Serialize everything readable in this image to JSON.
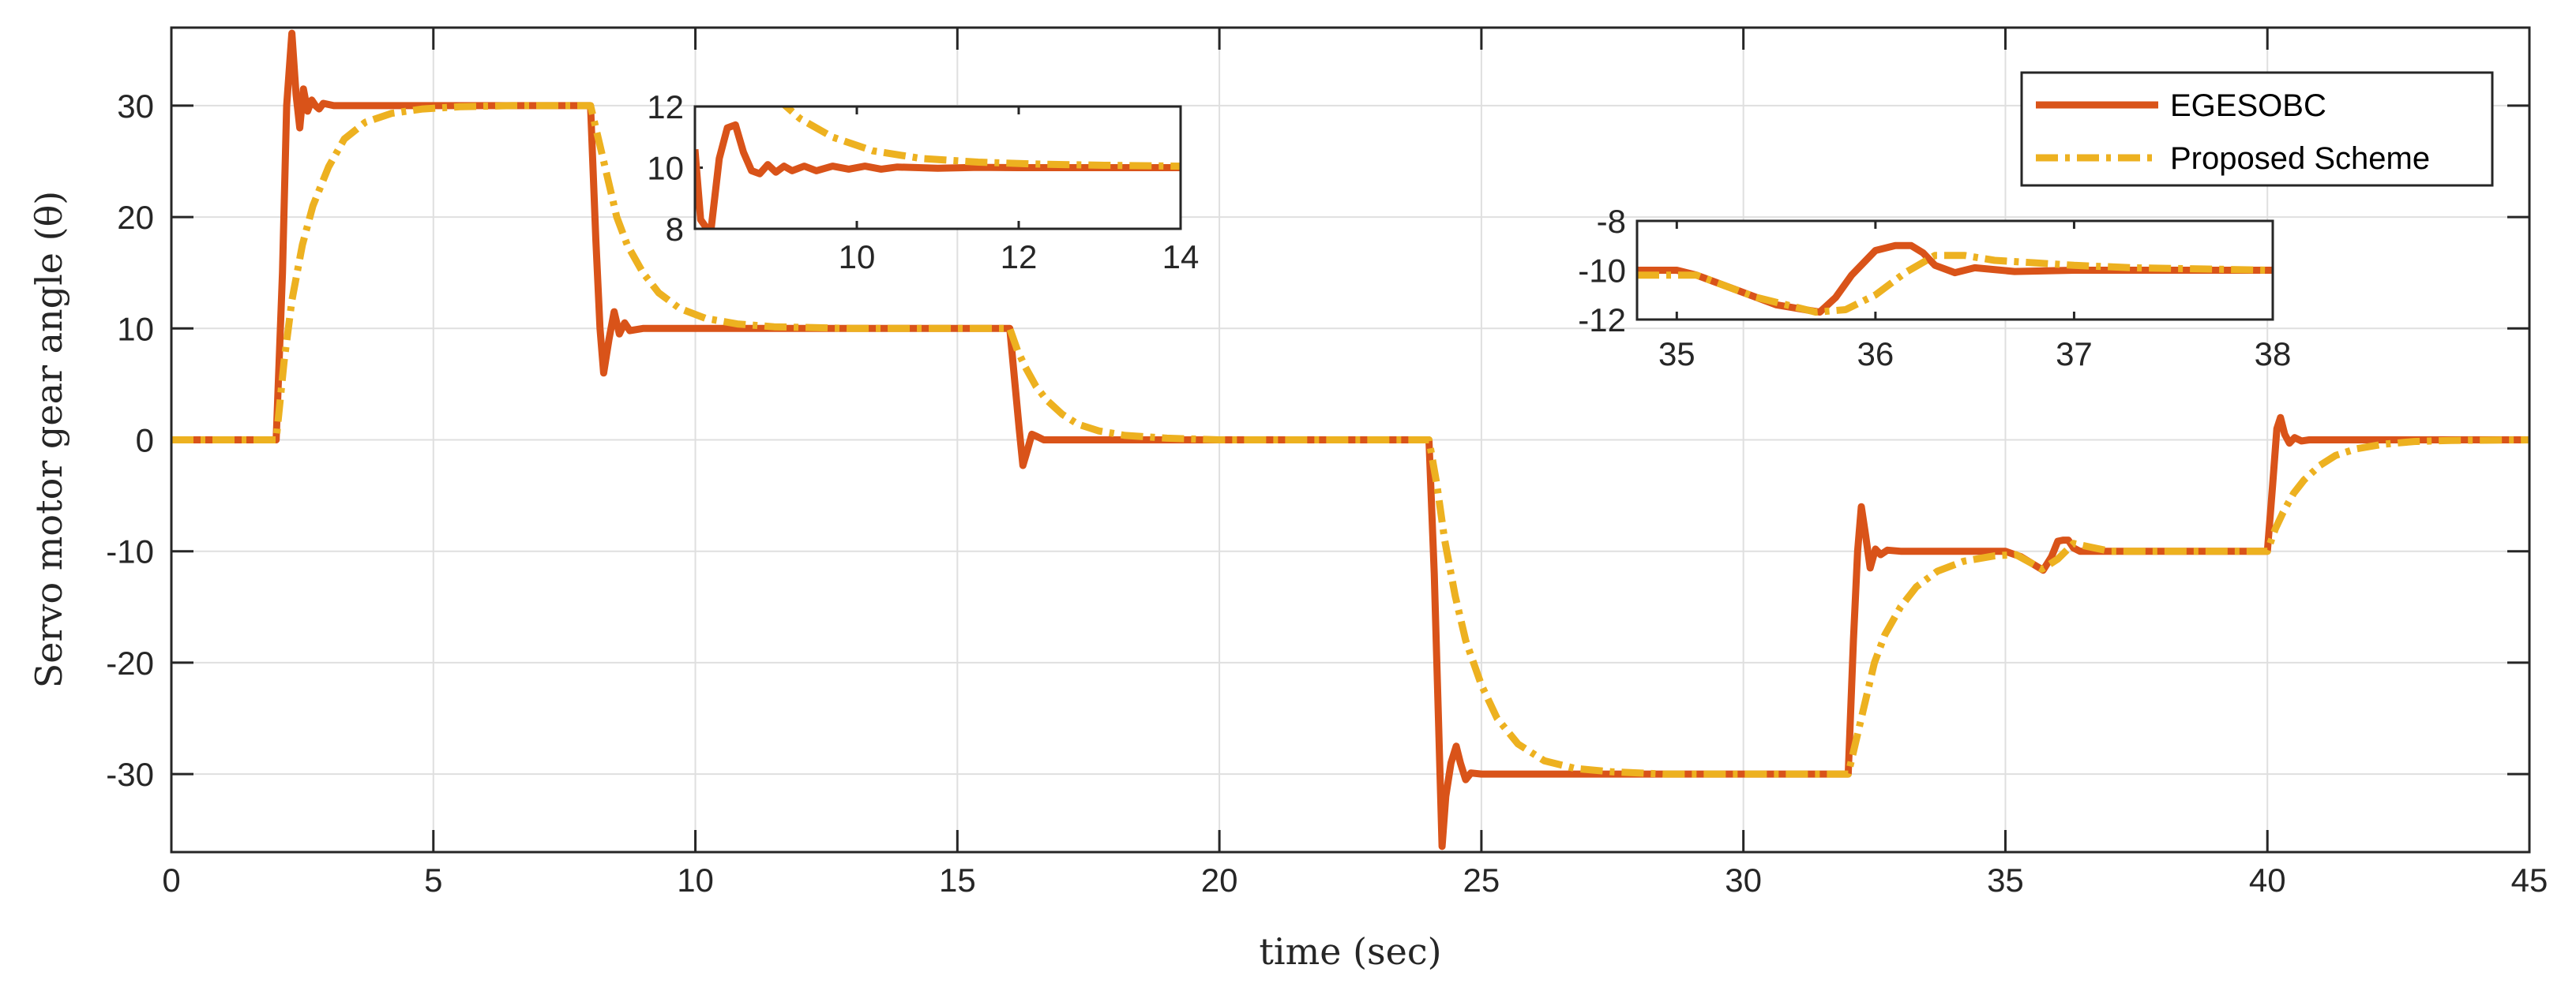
{
  "colors": {
    "egesobc": "#D95319",
    "proposed": "#EDB120",
    "grid": "#DFDFDF",
    "axis": "#262626",
    "background": "#FFFFFF"
  },
  "legend": {
    "items": [
      {
        "name": "EGESOBC",
        "style": "solid"
      },
      {
        "name": "Proposed Scheme",
        "style": "dash-dot"
      }
    ],
    "location": "top-right"
  },
  "chart_data": [
    {
      "id": "main",
      "type": "line",
      "title": "",
      "xlabel": "time (sec)",
      "ylabel": "Servo motor gear angle (θ)",
      "xlim": [
        0,
        45
      ],
      "ylim": [
        -37,
        37
      ],
      "xticks": [
        0,
        5,
        10,
        15,
        20,
        25,
        30,
        35,
        40,
        45
      ],
      "yticks": [
        -30,
        -20,
        -10,
        0,
        10,
        20,
        30
      ],
      "grid": true,
      "series": [
        {
          "name": "EGESOBC",
          "x": [
            0,
            2,
            2.12,
            2.2,
            2.3,
            2.38,
            2.45,
            2.52,
            2.6,
            2.68,
            2.75,
            2.82,
            2.9,
            3.1,
            8,
            8.1,
            8.18,
            8.25,
            8.35,
            8.45,
            8.55,
            8.65,
            8.75,
            9.0,
            16,
            16.1,
            16.18,
            16.25,
            16.32,
            16.42,
            16.52,
            16.65,
            16.8,
            24,
            24.1,
            24.18,
            24.25,
            24.32,
            24.42,
            24.52,
            24.6,
            24.7,
            24.8,
            25.0,
            32,
            32.1,
            32.18,
            32.25,
            32.33,
            32.42,
            32.52,
            32.62,
            32.75,
            33.0,
            35.0,
            35.3,
            35.72,
            35.88,
            36.0,
            36.1,
            36.2,
            36.3,
            36.42,
            36.6,
            40,
            40.1,
            40.18,
            40.25,
            40.33,
            40.42,
            40.52,
            40.65,
            40.8,
            45
          ],
          "y": [
            0,
            0,
            15,
            30,
            36.5,
            31,
            28,
            31.5,
            29.5,
            30.5,
            30,
            29.7,
            30.2,
            30,
            30,
            18,
            10,
            6,
            9,
            11.5,
            9.5,
            10.5,
            9.8,
            10,
            10,
            5,
            1,
            -2.3,
            -1.2,
            0.5,
            0.3,
            0,
            0,
            0,
            -12,
            -25,
            -36.5,
            -32,
            -29,
            -27.5,
            -29,
            -30.5,
            -29.9,
            -30,
            -30,
            -18,
            -10,
            -6,
            -8.5,
            -11.5,
            -9.8,
            -10.3,
            -9.9,
            -10,
            -10,
            -10.5,
            -11.7,
            -10.5,
            -9.1,
            -9,
            -9,
            -9.7,
            -10,
            -10,
            -10,
            -4,
            1,
            2,
            0.5,
            -0.3,
            0.2,
            -0.1,
            0,
            0
          ]
        },
        {
          "name": "Proposed Scheme",
          "x": [
            0,
            2,
            2.15,
            2.3,
            2.5,
            2.7,
            3.0,
            3.3,
            3.7,
            4.2,
            4.8,
            5.5,
            6.5,
            8,
            8.15,
            8.3,
            8.5,
            8.7,
            9.0,
            9.3,
            9.7,
            10.2,
            10.8,
            11.5,
            13,
            16,
            16.15,
            16.3,
            16.5,
            16.7,
            17.0,
            17.3,
            17.7,
            18.2,
            19,
            20,
            24,
            24.15,
            24.3,
            24.5,
            24.7,
            25.0,
            25.3,
            25.7,
            26.2,
            26.8,
            27.5,
            28.5,
            32,
            32.15,
            32.3,
            32.5,
            32.7,
            33.0,
            33.3,
            33.7,
            34.2,
            34.8,
            35.2,
            35.7,
            36.0,
            36.3,
            36.6,
            37.0,
            40,
            40.15,
            40.3,
            40.5,
            40.7,
            41.0,
            41.3,
            41.7,
            42.2,
            42.8,
            43.5,
            45
          ],
          "y": [
            0,
            0,
            7,
            12.5,
            17.5,
            21,
            24.5,
            27,
            28.5,
            29.3,
            29.7,
            29.9,
            30,
            30,
            27,
            24,
            20,
            17.5,
            15,
            13.2,
            11.8,
            10.9,
            10.4,
            10.15,
            10,
            10,
            8,
            6.5,
            4.8,
            3.6,
            2.3,
            1.4,
            0.8,
            0.4,
            0.15,
            0,
            0,
            -4,
            -9,
            -14,
            -18,
            -22,
            -25,
            -27.3,
            -28.8,
            -29.5,
            -29.8,
            -30,
            -30,
            -27,
            -24,
            -20,
            -17.5,
            -15,
            -13.2,
            -11.8,
            -10.9,
            -10.4,
            -10.3,
            -11.6,
            -10.7,
            -9.3,
            -9.6,
            -10,
            -10,
            -8,
            -6.5,
            -4.8,
            -3.6,
            -2.3,
            -1.4,
            -0.8,
            -0.4,
            -0.15,
            -0.05,
            0
          ]
        }
      ]
    },
    {
      "id": "inset-1",
      "type": "line",
      "xlim": [
        8,
        14
      ],
      "ylim": [
        8,
        12
      ],
      "xticks": [
        10,
        12,
        14
      ],
      "yticks": [
        8,
        10,
        12
      ],
      "grid": false,
      "series": [
        {
          "name": "EGESOBC",
          "x": [
            8,
            8.07,
            8.15,
            8.2,
            8.3,
            8.4,
            8.5,
            8.6,
            8.7,
            8.8,
            8.9,
            9.0,
            9.1,
            9.2,
            9.35,
            9.5,
            9.7,
            9.9,
            10.1,
            10.3,
            10.5,
            11,
            11.5,
            12,
            14
          ],
          "y": [
            10.6,
            8.3,
            8.0,
            8.0,
            10.3,
            11.3,
            11.4,
            10.5,
            9.9,
            9.8,
            10.1,
            9.85,
            10.05,
            9.9,
            10.05,
            9.9,
            10.05,
            9.95,
            10.05,
            9.95,
            10.02,
            9.98,
            10.01,
            10,
            10
          ]
        },
        {
          "name": "Proposed Scheme",
          "x": [
            9.0,
            9.3,
            9.7,
            10.2,
            10.8,
            11.5,
            12.2,
            13,
            14
          ],
          "y": [
            12.3,
            11.6,
            11.0,
            10.55,
            10.3,
            10.18,
            10.12,
            10.08,
            10.05
          ]
        }
      ]
    },
    {
      "id": "inset-2",
      "type": "line",
      "xlim": [
        34.8,
        38
      ],
      "ylim": [
        -12,
        -8
      ],
      "xticks": [
        35,
        36,
        37,
        38
      ],
      "yticks": [
        -12,
        -10,
        -8
      ],
      "grid": false,
      "series": [
        {
          "name": "EGESOBC",
          "x": [
            34.8,
            35.0,
            35.1,
            35.3,
            35.5,
            35.72,
            35.8,
            35.88,
            36.0,
            36.1,
            36.18,
            36.24,
            36.3,
            36.4,
            36.5,
            36.7,
            37,
            38
          ],
          "y": [
            -10,
            -10,
            -10.2,
            -10.8,
            -11.4,
            -11.7,
            -11.1,
            -10.2,
            -9.2,
            -9.0,
            -9.0,
            -9.3,
            -9.8,
            -10.1,
            -9.9,
            -10.05,
            -10,
            -10
          ]
        },
        {
          "name": "Proposed Scheme",
          "x": [
            34.8,
            35.1,
            35.4,
            35.7,
            35.85,
            36.0,
            36.15,
            36.3,
            36.45,
            36.6,
            36.8,
            37.0,
            37.3,
            38
          ],
          "y": [
            -10.2,
            -10.2,
            -11.1,
            -11.7,
            -11.6,
            -11.0,
            -10.1,
            -9.4,
            -9.4,
            -9.6,
            -9.7,
            -9.8,
            -9.9,
            -10
          ]
        }
      ]
    }
  ]
}
